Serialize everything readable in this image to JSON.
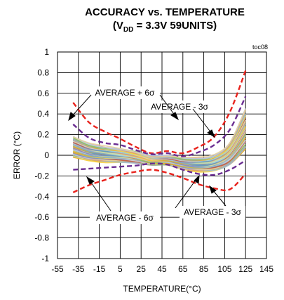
{
  "chart_data": {
    "type": "line",
    "title": "ACCURACY vs. TEMPERATURE",
    "subtitle": {
      "prefix": "(V",
      "sub": "DD",
      "suffix": " = 3.3V 59UNITS)"
    },
    "figure_tag": "toc08",
    "xlabel": "TEMPERATURE(°C)",
    "ylabel": "ERROR (°C)",
    "xlim": [
      -55,
      145
    ],
    "ylim": [
      -1,
      1
    ],
    "xticks": [
      -55,
      -35,
      -15,
      5,
      25,
      45,
      65,
      85,
      105,
      125,
      145
    ],
    "yticks": [
      -1,
      -0.8,
      -0.6,
      -0.4,
      -0.2,
      0,
      0.2,
      0.4,
      0.6,
      0.8,
      1
    ],
    "grid": true,
    "colors": {
      "six_sigma": "#e8231d",
      "three_sigma": "#6a2d91",
      "units": [
        "#f0a51c",
        "#f7d44a",
        "#c8b14a",
        "#9fbfd9",
        "#7fa7c9",
        "#a9a9b4",
        "#cfe3a3",
        "#8fbf5a",
        "#d99a7a",
        "#b7c9e8",
        "#e7d3a0",
        "#8a8ab8",
        "#c85a3c",
        "#5fa0c0",
        "#d4d4d4",
        "#a0d0e0"
      ]
    },
    "x": [
      -40,
      -25,
      -10,
      5,
      20,
      35,
      50,
      65,
      80,
      95,
      110,
      125
    ],
    "series": [
      {
        "style": "six_sigma",
        "values": [
          0.51,
          0.32,
          0.23,
          0.16,
          0.08,
          0.02,
          0.04,
          0.02,
          0.08,
          0.18,
          0.42,
          0.82
        ]
      },
      {
        "style": "three_sigma",
        "values": [
          0.3,
          0.17,
          0.12,
          0.1,
          0.05,
          0.01,
          0.02,
          -0.01,
          0.03,
          0.1,
          0.25,
          0.57
        ]
      },
      {
        "style": "three_sigma",
        "values": [
          -0.14,
          -0.13,
          -0.12,
          -0.11,
          -0.1,
          -0.08,
          -0.09,
          -0.14,
          -0.18,
          -0.19,
          -0.14,
          -0.05
        ]
      },
      {
        "style": "six_sigma",
        "values": [
          -0.36,
          -0.29,
          -0.24,
          -0.19,
          -0.16,
          -0.14,
          -0.17,
          -0.22,
          -0.28,
          -0.32,
          -0.33,
          -0.18
        ]
      }
    ],
    "unit_band": {
      "center": [
        0.08,
        0.03,
        0.01,
        0.0,
        -0.02,
        -0.05,
        -0.05,
        -0.08,
        -0.09,
        -0.07,
        0.02,
        0.26
      ],
      "spread": [
        0.11,
        0.09,
        0.08,
        0.07,
        0.06,
        0.05,
        0.05,
        0.06,
        0.07,
        0.08,
        0.12,
        0.22
      ],
      "count": 59
    },
    "annotations": [
      {
        "text": "AVERAGE + 6σ"
      },
      {
        "text": "AVERAGE - 3σ"
      },
      {
        "text": "AVERAGE - 6σ"
      },
      {
        "text": "AVERAGE - 3σ"
      }
    ]
  }
}
